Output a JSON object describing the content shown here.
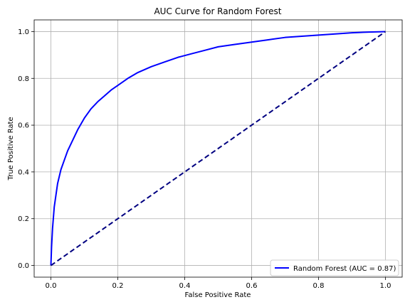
{
  "chart_data": {
    "type": "line",
    "title": "AUC Curve for Random Forest",
    "xlabel": "False Positive Rate",
    "ylabel": "True Positive Rate",
    "xlim": [
      -0.05,
      1.05
    ],
    "ylim": [
      -0.05,
      1.05
    ],
    "xticks": [
      0.0,
      0.2,
      0.4,
      0.6,
      0.8,
      1.0
    ],
    "yticks": [
      0.0,
      0.2,
      0.4,
      0.6,
      0.8,
      1.0
    ],
    "xtick_labels": [
      "0.0",
      "0.2",
      "0.4",
      "0.6",
      "0.8",
      "1.0"
    ],
    "ytick_labels": [
      "0.0",
      "0.2",
      "0.4",
      "0.6",
      "0.8",
      "1.0"
    ],
    "grid": true,
    "legend_position": "lower-right",
    "series": [
      {
        "name": "Random Forest (AUC = 0.87)",
        "color": "#0000ff",
        "style": "solid",
        "x": [
          0.0,
          0.002,
          0.005,
          0.01,
          0.015,
          0.02,
          0.03,
          0.04,
          0.05,
          0.06,
          0.07,
          0.08,
          0.1,
          0.12,
          0.14,
          0.16,
          0.18,
          0.2,
          0.23,
          0.26,
          0.3,
          0.34,
          0.38,
          0.42,
          0.46,
          0.5,
          0.55,
          0.6,
          0.65,
          0.7,
          0.75,
          0.8,
          0.85,
          0.9,
          0.95,
          1.0
        ],
        "y": [
          0.0,
          0.08,
          0.16,
          0.25,
          0.3,
          0.35,
          0.41,
          0.45,
          0.49,
          0.52,
          0.55,
          0.58,
          0.63,
          0.67,
          0.7,
          0.725,
          0.75,
          0.77,
          0.8,
          0.825,
          0.85,
          0.87,
          0.89,
          0.905,
          0.92,
          0.935,
          0.945,
          0.955,
          0.965,
          0.975,
          0.98,
          0.985,
          0.99,
          0.995,
          0.998,
          1.0
        ]
      },
      {
        "name": "",
        "color": "#000080",
        "style": "dashed",
        "x": [
          0.0,
          1.0
        ],
        "y": [
          0.0,
          1.0
        ]
      }
    ]
  }
}
